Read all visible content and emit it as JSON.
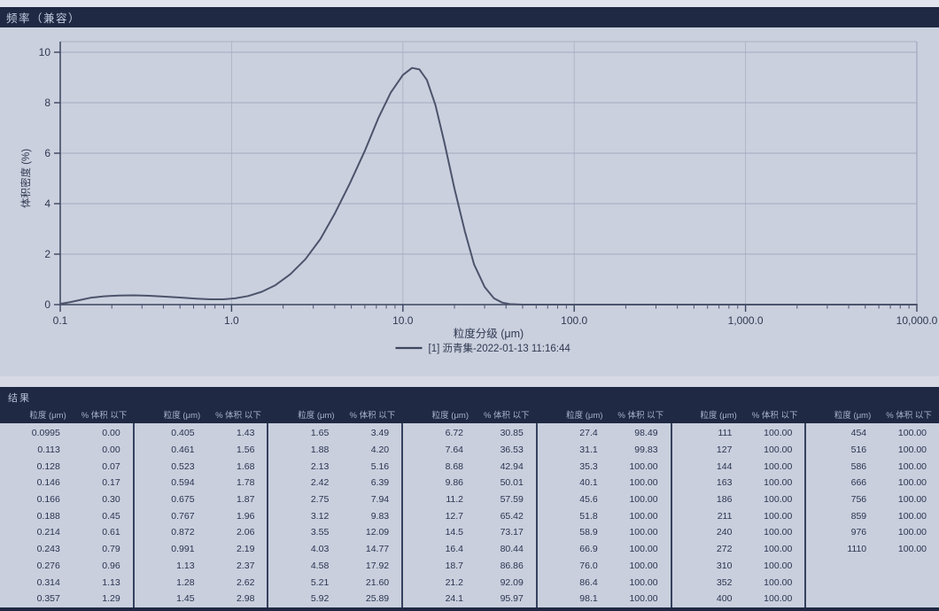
{
  "window": {
    "title": "频率（兼容）"
  },
  "chart_data": {
    "type": "line",
    "title": "频率（兼容）",
    "xlabel": "粒度分级 (μm)",
    "ylabel": "体积密度 (%)",
    "x_scale": "log",
    "xlim": [
      0.1,
      10000
    ],
    "ylim": [
      0,
      10
    ],
    "x_tick_labels": [
      "0.1",
      "1.0",
      "10.0",
      "100.0",
      "1,000.0",
      "10,000.0"
    ],
    "x_tick_values": [
      0.1,
      1,
      10,
      100,
      1000,
      10000
    ],
    "y_ticks": [
      0,
      2,
      4,
      6,
      8,
      10
    ],
    "grid": true,
    "legend_position": "bottom-center",
    "series": [
      {
        "name": "[1] 沥青集-2022-01-13 11:16:44",
        "points": [
          [
            0.1,
            0.03
          ],
          [
            0.115,
            0.1
          ],
          [
            0.13,
            0.18
          ],
          [
            0.15,
            0.27
          ],
          [
            0.18,
            0.33
          ],
          [
            0.22,
            0.36
          ],
          [
            0.27,
            0.37
          ],
          [
            0.33,
            0.35
          ],
          [
            0.4,
            0.32
          ],
          [
            0.5,
            0.28
          ],
          [
            0.62,
            0.24
          ],
          [
            0.75,
            0.21
          ],
          [
            0.9,
            0.21
          ],
          [
            1.05,
            0.25
          ],
          [
            1.25,
            0.34
          ],
          [
            1.5,
            0.51
          ],
          [
            1.8,
            0.77
          ],
          [
            2.2,
            1.2
          ],
          [
            2.7,
            1.8
          ],
          [
            3.3,
            2.6
          ],
          [
            4.0,
            3.6
          ],
          [
            4.9,
            4.8
          ],
          [
            6.0,
            6.1
          ],
          [
            7.2,
            7.4
          ],
          [
            8.5,
            8.4
          ],
          [
            10.0,
            9.1
          ],
          [
            11.3,
            9.38
          ],
          [
            12.5,
            9.32
          ],
          [
            13.8,
            8.9
          ],
          [
            15.5,
            7.9
          ],
          [
            17.5,
            6.4
          ],
          [
            20,
            4.6
          ],
          [
            23,
            2.9
          ],
          [
            26,
            1.6
          ],
          [
            30,
            0.7
          ],
          [
            34,
            0.25
          ],
          [
            38,
            0.08
          ],
          [
            42,
            0.02
          ],
          [
            50,
            0.0
          ],
          [
            100,
            0.0
          ],
          [
            1000,
            0.0
          ],
          [
            10000,
            0.0
          ]
        ]
      }
    ]
  },
  "results": {
    "section_label": "结果",
    "size_header": "粒度 (μm)",
    "pct_header": "% 体积 以下",
    "groups": [
      [
        [
          "0.0995",
          "0.00"
        ],
        [
          "0.113",
          "0.00"
        ],
        [
          "0.128",
          "0.07"
        ],
        [
          "0.146",
          "0.17"
        ],
        [
          "0.166",
          "0.30"
        ],
        [
          "0.188",
          "0.45"
        ],
        [
          "0.214",
          "0.61"
        ],
        [
          "0.243",
          "0.79"
        ],
        [
          "0.276",
          "0.96"
        ],
        [
          "0.314",
          "1.13"
        ],
        [
          "0.357",
          "1.29"
        ]
      ],
      [
        [
          "0.405",
          "1.43"
        ],
        [
          "0.461",
          "1.56"
        ],
        [
          "0.523",
          "1.68"
        ],
        [
          "0.594",
          "1.78"
        ],
        [
          "0.675",
          "1.87"
        ],
        [
          "0.767",
          "1.96"
        ],
        [
          "0.872",
          "2.06"
        ],
        [
          "0.991",
          "2.19"
        ],
        [
          "1.13",
          "2.37"
        ],
        [
          "1.28",
          "2.62"
        ],
        [
          "1.45",
          "2.98"
        ]
      ],
      [
        [
          "1.65",
          "3.49"
        ],
        [
          "1.88",
          "4.20"
        ],
        [
          "2.13",
          "5.16"
        ],
        [
          "2.42",
          "6.39"
        ],
        [
          "2.75",
          "7.94"
        ],
        [
          "3.12",
          "9.83"
        ],
        [
          "3.55",
          "12.09"
        ],
        [
          "4.03",
          "14.77"
        ],
        [
          "4.58",
          "17.92"
        ],
        [
          "5.21",
          "21.60"
        ],
        [
          "5.92",
          "25.89"
        ]
      ],
      [
        [
          "6.72",
          "30.85"
        ],
        [
          "7.64",
          "36.53"
        ],
        [
          "8.68",
          "42.94"
        ],
        [
          "9.86",
          "50.01"
        ],
        [
          "11.2",
          "57.59"
        ],
        [
          "12.7",
          "65.42"
        ],
        [
          "14.5",
          "73.17"
        ],
        [
          "16.4",
          "80.44"
        ],
        [
          "18.7",
          "86.86"
        ],
        [
          "21.2",
          "92.09"
        ],
        [
          "24.1",
          "95.97"
        ]
      ],
      [
        [
          "27.4",
          "98.49"
        ],
        [
          "31.1",
          "99.83"
        ],
        [
          "35.3",
          "100.00"
        ],
        [
          "40.1",
          "100.00"
        ],
        [
          "45.6",
          "100.00"
        ],
        [
          "51.8",
          "100.00"
        ],
        [
          "58.9",
          "100.00"
        ],
        [
          "66.9",
          "100.00"
        ],
        [
          "76.0",
          "100.00"
        ],
        [
          "86.4",
          "100.00"
        ],
        [
          "98.1",
          "100.00"
        ]
      ],
      [
        [
          "111",
          "100.00"
        ],
        [
          "127",
          "100.00"
        ],
        [
          "144",
          "100.00"
        ],
        [
          "163",
          "100.00"
        ],
        [
          "186",
          "100.00"
        ],
        [
          "211",
          "100.00"
        ],
        [
          "240",
          "100.00"
        ],
        [
          "272",
          "100.00"
        ],
        [
          "310",
          "100.00"
        ],
        [
          "352",
          "100.00"
        ],
        [
          "400",
          "100.00"
        ]
      ],
      [
        [
          "454",
          "100.00"
        ],
        [
          "516",
          "100.00"
        ],
        [
          "586",
          "100.00"
        ],
        [
          "666",
          "100.00"
        ],
        [
          "756",
          "100.00"
        ],
        [
          "859",
          "100.00"
        ],
        [
          "976",
          "100.00"
        ],
        [
          "1110",
          "100.00"
        ]
      ]
    ]
  }
}
